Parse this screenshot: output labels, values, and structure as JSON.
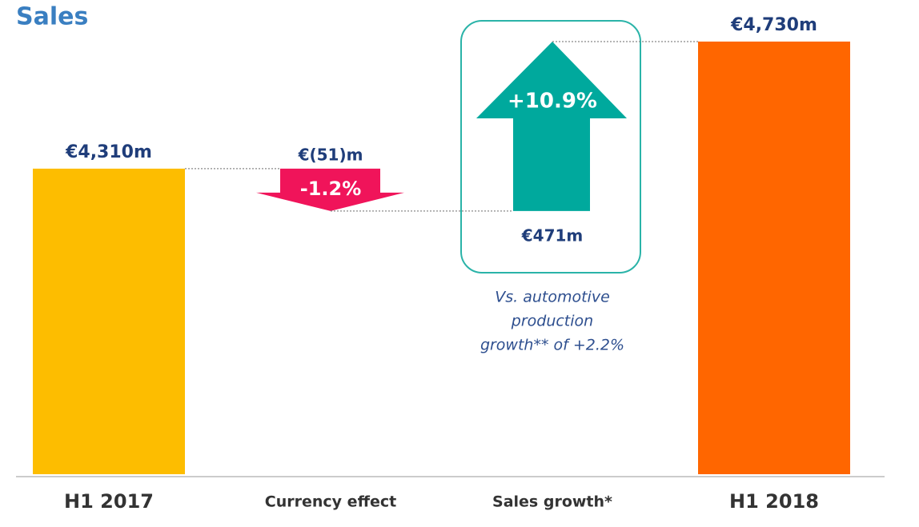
{
  "chart_data": {
    "type": "waterfall",
    "title": "Sales",
    "categories": [
      "H1 2017",
      "Currency effect",
      "Sales growth*",
      "H1 2018"
    ],
    "values": [
      4310,
      -51,
      471,
      4730
    ],
    "value_labels": [
      "€4,310m",
      "€(51)m",
      "€471m",
      "€4,730m"
    ],
    "change_labels": [
      "-1.2%",
      "+10.9%"
    ],
    "colors": [
      "#fdbd00",
      "#f0145a",
      "#00a99d",
      "#ff6600"
    ],
    "note_lines": [
      "Vs. automotive",
      "production",
      "growth** of +2.2%"
    ],
    "ylim": [
      3300,
      4800
    ]
  }
}
